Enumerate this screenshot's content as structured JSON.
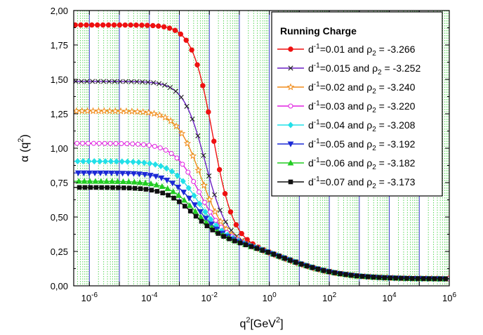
{
  "chart_data": {
    "type": "line",
    "xscale": "log",
    "xlim": [
      3e-07,
      1000000
    ],
    "ylim": [
      0,
      2
    ],
    "xlabel": {
      "base": "q",
      "sup": "2",
      "unit_open": "[GeV",
      "unit_sup": "2",
      "unit_close": "]"
    },
    "ylabel": {
      "base": "α (q",
      "sup": "2",
      "close": ")"
    },
    "x_ticks": [
      {
        "value": 1e-06,
        "base": "10",
        "exp": "-6"
      },
      {
        "value": 0.0001,
        "base": "10",
        "exp": "-4"
      },
      {
        "value": 0.01,
        "base": "10",
        "exp": "-2"
      },
      {
        "value": 1,
        "base": "10",
        "exp": "0"
      },
      {
        "value": 100,
        "base": "10",
        "exp": "2"
      },
      {
        "value": 10000,
        "base": "10",
        "exp": "4"
      },
      {
        "value": 1000000,
        "base": "10",
        "exp": "6"
      }
    ],
    "y_ticks": [
      {
        "value": 0,
        "label": "0,00"
      },
      {
        "value": 0.25,
        "label": "0,25"
      },
      {
        "value": 0.5,
        "label": "0,50"
      },
      {
        "value": 0.75,
        "label": "0,75"
      },
      {
        "value": 1.0,
        "label": "1,00"
      },
      {
        "value": 1.25,
        "label": "1,25"
      },
      {
        "value": 1.5,
        "label": "1,50"
      },
      {
        "value": 1.75,
        "label": "1,75"
      },
      {
        "value": 2.0,
        "label": "2,00"
      }
    ],
    "grid": {
      "major_color": "#3a3acc",
      "minor_color": "#33cc33"
    },
    "legend": {
      "title": "Running Charge",
      "placement": "top-right"
    },
    "series": [
      {
        "d": "0.01",
        "rho": "-3.266",
        "color": "#ee1111",
        "marker": "circle-filled",
        "plateau": 1.895,
        "log_mid": -1.9,
        "width": 0.34
      },
      {
        "d": "0.015",
        "rho": "-3.252",
        "color": "#6a1fc4",
        "marker": "x",
        "plateau": 1.485,
        "log_mid": -2.15,
        "width": 0.36
      },
      {
        "d": "0.02",
        "rho": "-3.240",
        "color": "#f08c1a",
        "marker": "star-open",
        "plateau": 1.27,
        "log_mid": -2.3,
        "width": 0.4
      },
      {
        "d": "0.03",
        "rho": "-3.220",
        "color": "#e020e0",
        "marker": "circle-open",
        "plateau": 1.035,
        "log_mid": -2.35,
        "width": 0.43
      },
      {
        "d": "0.04",
        "rho": "-3.208",
        "color": "#22e0e8",
        "marker": "diamond-filled",
        "plateau": 0.905,
        "log_mid": -2.4,
        "width": 0.45
      },
      {
        "d": "0.05",
        "rho": "-3.192",
        "color": "#1c2ad6",
        "marker": "triangle-down",
        "plateau": 0.82,
        "log_mid": -2.45,
        "width": 0.46
      },
      {
        "d": "0.06",
        "rho": "-3.182",
        "color": "#22cc22",
        "marker": "triangle-up",
        "plateau": 0.76,
        "log_mid": -2.5,
        "width": 0.47
      },
      {
        "d": "0.07",
        "rho": "-3.173",
        "color": "#111111",
        "marker": "square-filled",
        "plateau": 0.715,
        "log_mid": -2.55,
        "width": 0.48
      }
    ],
    "legend_labels": {
      "prefix": "d",
      "prefix_sup": "-1",
      "mid": " and ",
      "rho": "ρ",
      "rho_sub": "2",
      "eq": " = "
    }
  }
}
